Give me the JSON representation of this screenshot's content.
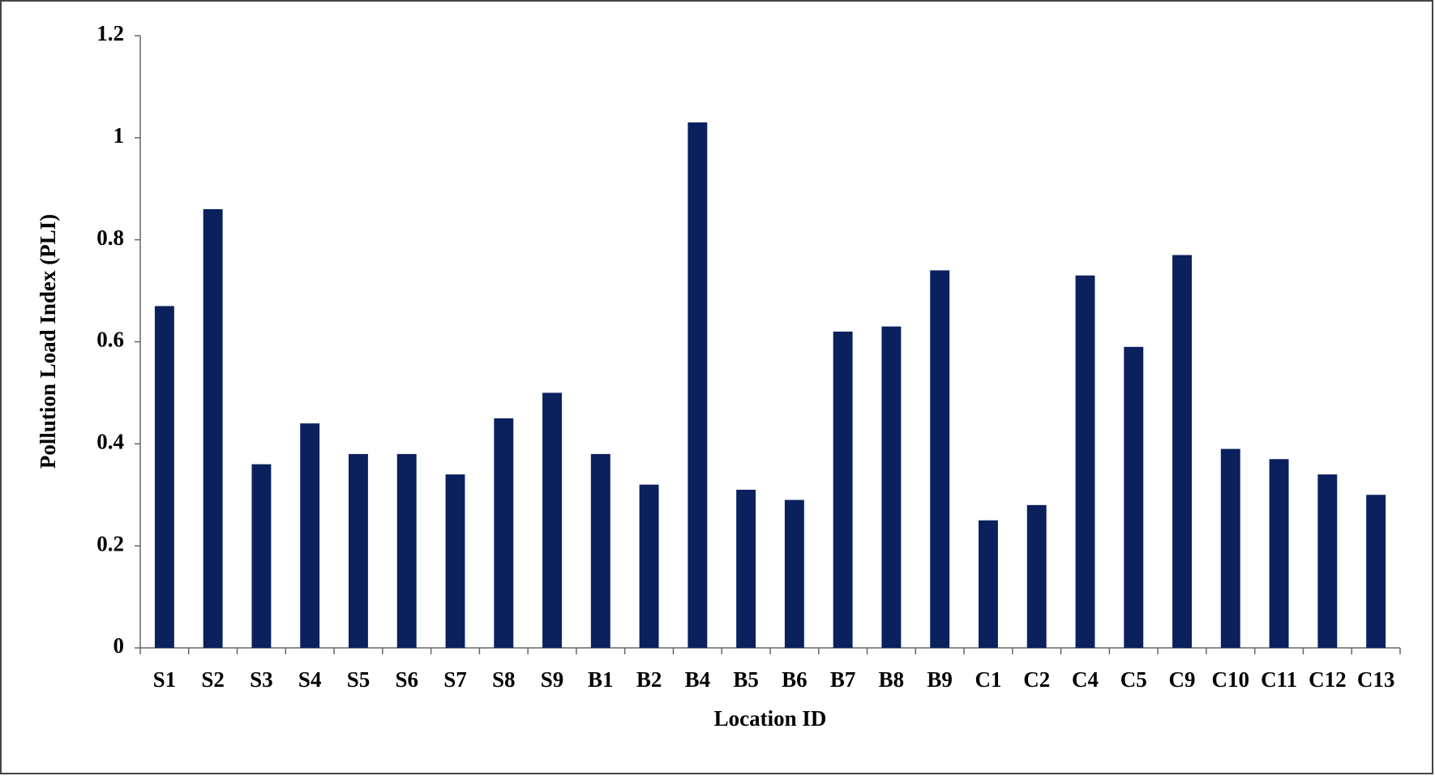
{
  "chart_data": {
    "type": "bar",
    "x_label": "Location ID",
    "y_label": "Pollution Load Index (PLI)",
    "categories": [
      "S1",
      "S2",
      "S3",
      "S4",
      "S5",
      "S6",
      "S7",
      "S8",
      "S9",
      "B1",
      "B2",
      "B4",
      "B5",
      "B6",
      "B7",
      "B8",
      "B9",
      "C1",
      "C2",
      "C4",
      "C5",
      "C9",
      "C10",
      "C11",
      "C12",
      "C13"
    ],
    "values": [
      0.67,
      0.86,
      0.36,
      0.44,
      0.38,
      0.38,
      0.34,
      0.45,
      0.5,
      0.38,
      0.32,
      1.03,
      0.31,
      0.29,
      0.62,
      0.63,
      0.74,
      0.25,
      0.28,
      0.73,
      0.59,
      0.77,
      0.39,
      0.37,
      0.34,
      0.3
    ],
    "color": "#0b215e",
    "ylim": [
      0,
      1.2
    ],
    "yticks": [
      0,
      0.2,
      0.4,
      0.6,
      0.8,
      1,
      1.2
    ],
    "grid": false
  }
}
